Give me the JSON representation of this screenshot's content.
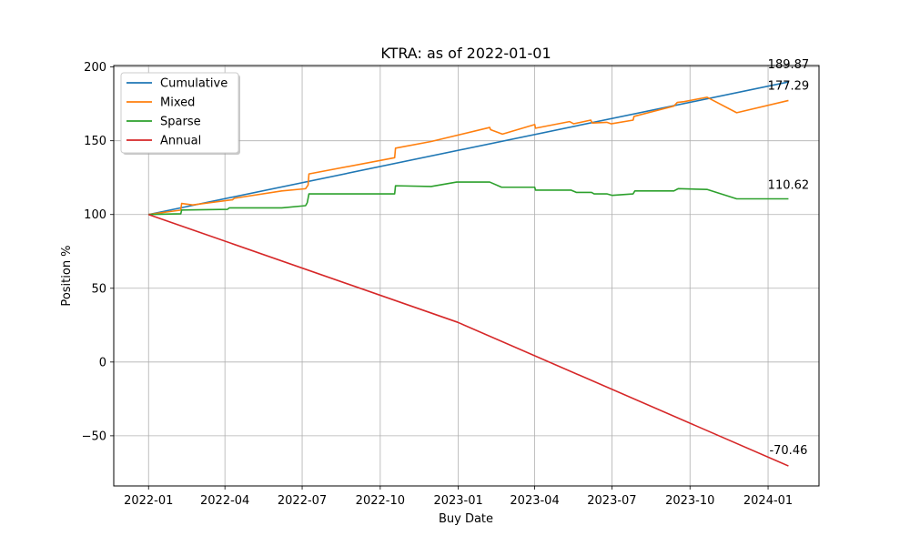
{
  "chart_data": {
    "type": "line",
    "title": "KTRA: as of 2022-01-01",
    "xlabel": "Buy Date",
    "ylabel": "Position %",
    "xlim": [
      "2021-11-21",
      "2024-03-01"
    ],
    "ylim": [
      -84,
      201
    ],
    "x_ticks": [
      "2022-01",
      "2022-04",
      "2022-07",
      "2022-10",
      "2023-01",
      "2023-04",
      "2023-07",
      "2023-10",
      "2024-01"
    ],
    "y_ticks": [
      -50,
      0,
      50,
      100,
      150,
      200
    ],
    "y_tick_labels": [
      "−50",
      "0",
      "50",
      "100",
      "150",
      "200"
    ],
    "grid": true,
    "legend": "top-left",
    "series": [
      {
        "name": "Cumulative",
        "color": "#1f77b4",
        "end_label": "189.87",
        "points": [
          [
            "2022-01-01",
            100
          ],
          [
            "2024-01-25",
            189.87
          ]
        ]
      },
      {
        "name": "Mixed",
        "color": "#ff7f0e",
        "end_label": "177.29",
        "points": [
          [
            "2022-01-01",
            100
          ],
          [
            "2022-02-08",
            103
          ],
          [
            "2022-02-09",
            107.5
          ],
          [
            "2022-02-22",
            106.5
          ],
          [
            "2022-04-10",
            110
          ],
          [
            "2022-04-12",
            111
          ],
          [
            "2022-06-07",
            116
          ],
          [
            "2022-07-05",
            117.5
          ],
          [
            "2022-07-08",
            120
          ],
          [
            "2022-07-09",
            127.5
          ],
          [
            "2022-10-18",
            138.5
          ],
          [
            "2022-10-19",
            145
          ],
          [
            "2022-11-30",
            149.5
          ],
          [
            "2023-02-07",
            159
          ],
          [
            "2023-02-08",
            157.5
          ],
          [
            "2023-02-22",
            154.5
          ],
          [
            "2023-04-01",
            161
          ],
          [
            "2023-04-02",
            158.5
          ],
          [
            "2023-05-12",
            163
          ],
          [
            "2023-05-17",
            161.5
          ],
          [
            "2023-06-06",
            164
          ],
          [
            "2023-06-08",
            162
          ],
          [
            "2023-06-25",
            162.5
          ],
          [
            "2023-06-30",
            161.5
          ],
          [
            "2023-07-26",
            164
          ],
          [
            "2023-07-27",
            166.5
          ],
          [
            "2023-09-12",
            173.5
          ],
          [
            "2023-09-16",
            176
          ],
          [
            "2023-09-24",
            176.5
          ],
          [
            "2023-10-21",
            179.5
          ],
          [
            "2023-11-25",
            169
          ],
          [
            "2024-01-25",
            177.29
          ]
        ]
      },
      {
        "name": "Sparse",
        "color": "#2ca02c",
        "end_label": "110.62",
        "points": [
          [
            "2022-01-01",
            100
          ],
          [
            "2022-02-08",
            100.5
          ],
          [
            "2022-02-09",
            103
          ],
          [
            "2022-04-04",
            103.5
          ],
          [
            "2022-04-06",
            104.5
          ],
          [
            "2022-06-07",
            104.5
          ],
          [
            "2022-07-05",
            106
          ],
          [
            "2022-07-07",
            108
          ],
          [
            "2022-07-09",
            114
          ],
          [
            "2022-10-18",
            114
          ],
          [
            "2022-10-19",
            119.5
          ],
          [
            "2022-11-30",
            119
          ],
          [
            "2022-12-30",
            122
          ],
          [
            "2023-02-07",
            122
          ],
          [
            "2023-02-21",
            118.5
          ],
          [
            "2023-04-01",
            118.5
          ],
          [
            "2023-04-02",
            116.5
          ],
          [
            "2023-05-14",
            116.5
          ],
          [
            "2023-05-20",
            115
          ],
          [
            "2023-06-07",
            115
          ],
          [
            "2023-06-10",
            114
          ],
          [
            "2023-06-25",
            114
          ],
          [
            "2023-07-01",
            113
          ],
          [
            "2023-07-26",
            114
          ],
          [
            "2023-07-28",
            116
          ],
          [
            "2023-09-12",
            116
          ],
          [
            "2023-09-17",
            117.5
          ],
          [
            "2023-10-21",
            117
          ],
          [
            "2023-11-25",
            110.62
          ],
          [
            "2024-01-25",
            110.62
          ]
        ]
      },
      {
        "name": "Annual",
        "color": "#d62728",
        "end_label": "-70.46",
        "points": [
          [
            "2022-01-01",
            100
          ],
          [
            "2022-12-31",
            27
          ],
          [
            "2024-01-25",
            -70.46
          ]
        ]
      }
    ]
  }
}
